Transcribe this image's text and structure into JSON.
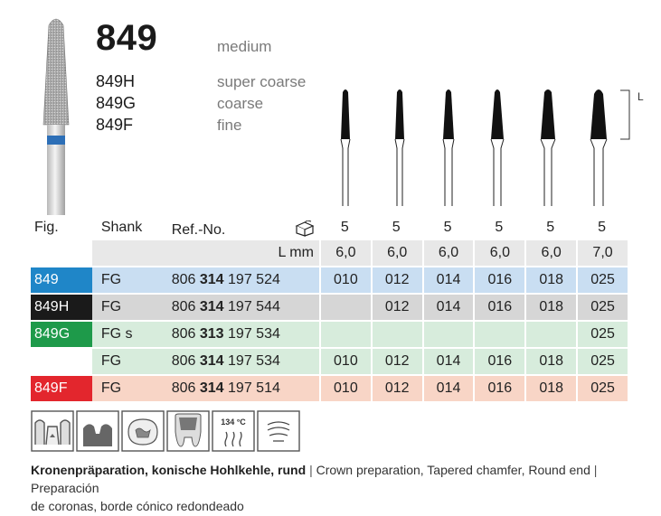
{
  "product": {
    "number": "849",
    "grit": "medium",
    "variants": [
      {
        "name": "849H",
        "grit": "super coarse"
      },
      {
        "name": "849G",
        "grit": "coarse"
      },
      {
        "name": "849F",
        "grit": "fine"
      }
    ]
  },
  "dimension_label": "L",
  "table": {
    "headers": {
      "fig": "Fig.",
      "shank": "Shank",
      "ref": "Ref.-No.",
      "pack_values": [
        "5",
        "5",
        "5",
        "5",
        "5",
        "5"
      ]
    },
    "lmm_label": "L mm",
    "lmm_values": [
      "6,0",
      "6,0",
      "6,0",
      "6,0",
      "6,0",
      "7,0"
    ],
    "rows": [
      {
        "fig": "849",
        "shank": "FG",
        "ref_a": "806",
        "ref_b": "314",
        "ref_c": "197 524",
        "sizes": [
          "010",
          "012",
          "014",
          "016",
          "018",
          "025"
        ],
        "color": "#1f86c8"
      },
      {
        "fig": "849H",
        "shank": "FG",
        "ref_a": "806",
        "ref_b": "314",
        "ref_c": "197 544",
        "sizes": [
          "",
          "012",
          "014",
          "016",
          "018",
          "025"
        ],
        "color": "#1a1a1a"
      },
      {
        "fig": "849G",
        "shank": "FG s",
        "ref_a": "806",
        "ref_b": "313",
        "ref_c": "197 534",
        "sizes": [
          "",
          "",
          "",
          "",
          "",
          "025"
        ],
        "color": "#1e9a4a"
      },
      {
        "fig": "",
        "shank": "FG",
        "ref_a": "806",
        "ref_b": "314",
        "ref_c": "197 534",
        "sizes": [
          "010",
          "012",
          "014",
          "016",
          "018",
          "025"
        ],
        "color": ""
      },
      {
        "fig": "849F",
        "shank": "FG",
        "ref_a": "806",
        "ref_b": "314",
        "ref_c": "197 514",
        "sizes": [
          "010",
          "012",
          "014",
          "016",
          "018",
          "025"
        ],
        "color": "#e3262d"
      }
    ]
  },
  "icons": [
    "crown-prep-icon",
    "tapered-chamfer-icon",
    "filling-icon",
    "tooth-icon",
    "sterilization-134c-icon",
    "ultrasonic-icon"
  ],
  "icon_text": {
    "temp": "134 °C"
  },
  "caption": {
    "de": "Kronenpräparation, konische Hohlkehle, rund",
    "separator": "|",
    "en": "Crown preparation, Tapered chamfer, Round end",
    "es_line1": "Preparación",
    "es_line2": "de coronas, borde cónico redondeado"
  }
}
